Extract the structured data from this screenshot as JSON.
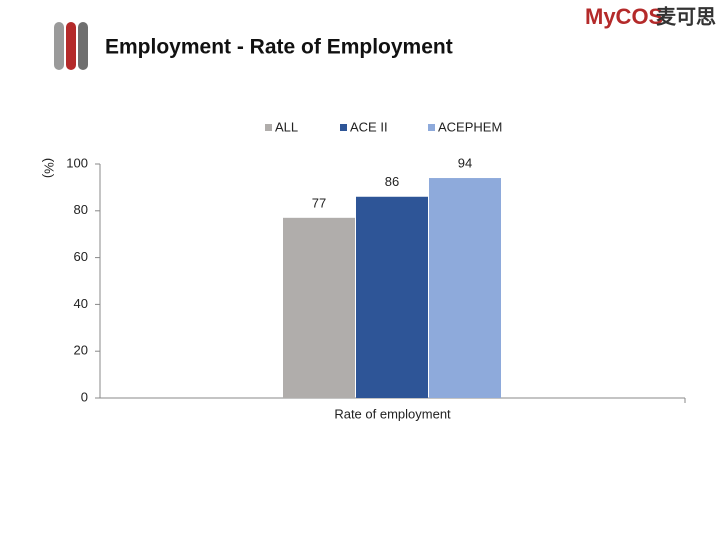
{
  "logo_text": "MyCOS",
  "logo_text_cn": "麦可思",
  "chart_data": {
    "type": "bar",
    "title": "Employment - Rate of Employment",
    "y_label": "(%)",
    "categories": [
      "Rate of employment"
    ],
    "series": [
      {
        "name": "ALL",
        "color": "#b0adab",
        "values": [
          77
        ]
      },
      {
        "name": "ACE II",
        "color": "#2e5597",
        "values": [
          86
        ]
      },
      {
        "name": "ACEPHEM",
        "color": "#8eaadb",
        "values": [
          94
        ]
      }
    ],
    "ylim": [
      0,
      100
    ],
    "yticks": [
      0,
      20,
      40,
      60,
      80,
      100
    ],
    "grid": false,
    "legend": "top"
  }
}
